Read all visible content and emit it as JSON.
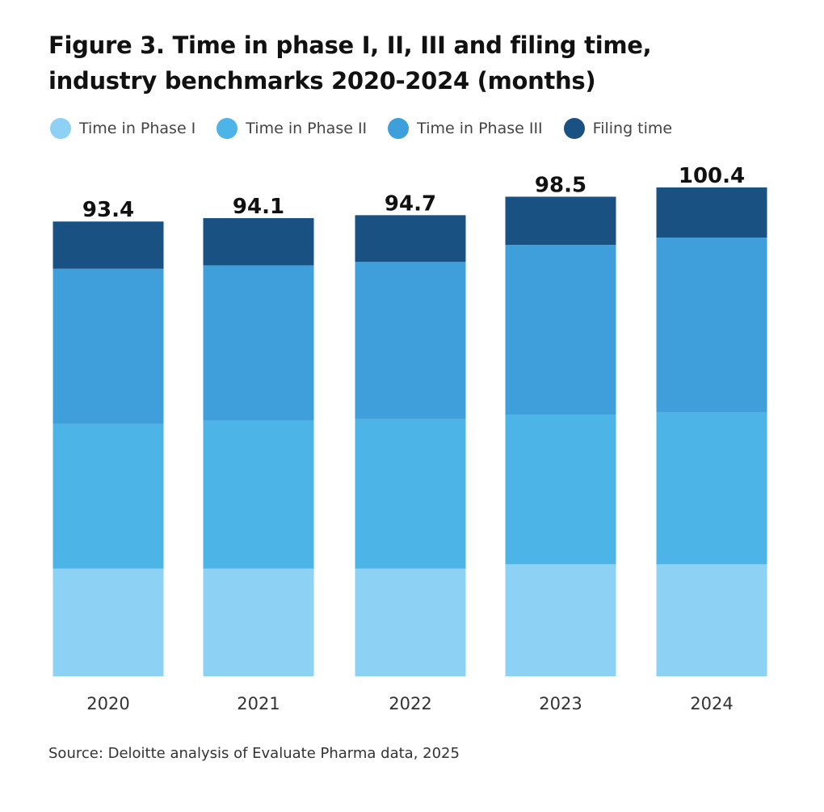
{
  "title_line1": "Figure 3. Time in phase I, II, III and filing time,",
  "title_line2": "industry benchmarks 2020-2024 (months)",
  "source": "Source: Deloitte analysis of Evaluate Pharma data, 2025",
  "chart_data": {
    "type": "bar",
    "stacked": true,
    "categories": [
      "2020",
      "2021",
      "2022",
      "2023",
      "2024"
    ],
    "series": [
      {
        "name": "Time in Phase I",
        "color": "#8dd1f4",
        "values": [
          22.1,
          22.1,
          22.1,
          23.0,
          23.0
        ]
      },
      {
        "name": "Time in Phase II",
        "color": "#4db4e8",
        "values": [
          29.7,
          30.4,
          30.7,
          30.7,
          31.2
        ]
      },
      {
        "name": "Time in Phase III",
        "color": "#3e9fdb",
        "values": [
          31.9,
          31.9,
          32.3,
          34.9,
          35.9
        ]
      },
      {
        "name": "Filing time",
        "color": "#1a5183",
        "values": [
          9.7,
          9.7,
          9.6,
          9.9,
          10.3
        ]
      }
    ],
    "totals": [
      "93.4",
      "94.1",
      "94.7",
      "98.5",
      "100.4"
    ],
    "ylim": [
      0,
      100.4
    ],
    "grid": false,
    "legend_position": "top"
  }
}
